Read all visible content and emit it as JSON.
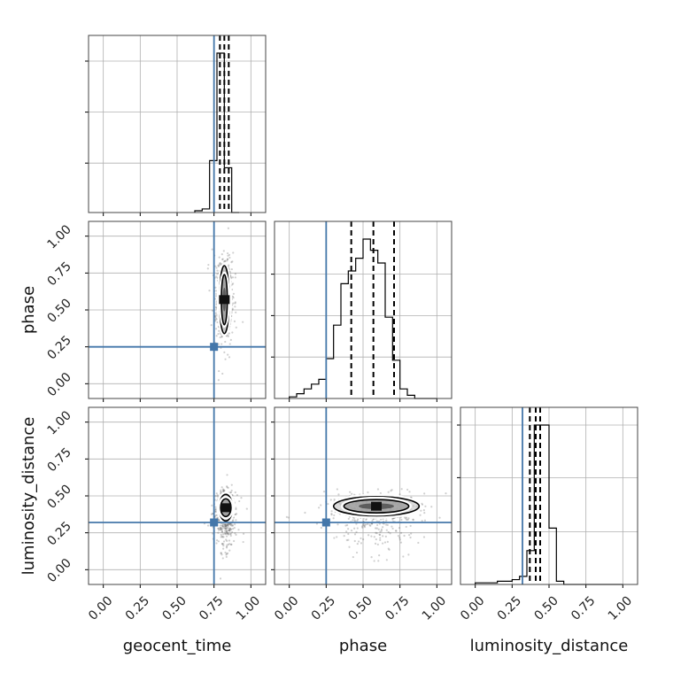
{
  "chart_data": {
    "type": "corner",
    "parameters": [
      "geocent_time",
      "phase",
      "luminosity_distance"
    ],
    "axis_range": [
      -0.1,
      1.1
    ],
    "ticks": [
      "0.00",
      "0.25",
      "0.50",
      "0.75",
      "1.00"
    ],
    "tick_values": [
      0,
      0.25,
      0.5,
      0.75,
      1.0
    ],
    "grid": true,
    "truths": {
      "geocent_time": 0.75,
      "phase": 0.25,
      "luminosity_distance": 0.32
    },
    "colors": {
      "truth": "#4477aa",
      "hist": "#000000",
      "grid": "#b0b0b0",
      "points": "#555555"
    },
    "marginals": [
      {
        "parameter": "geocent_time",
        "bin_edges": [
          0.62,
          0.67,
          0.72,
          0.77,
          0.82,
          0.87,
          0.92
        ],
        "counts": [
          0.01,
          0.02,
          0.29,
          0.89,
          0.25,
          0.0
        ],
        "quantiles": [
          0.79,
          0.82,
          0.85
        ]
      },
      {
        "parameter": "phase",
        "bin_edges": [
          0.0,
          0.05,
          0.1,
          0.15,
          0.2,
          0.25,
          0.3,
          0.35,
          0.4,
          0.45,
          0.5,
          0.55,
          0.6,
          0.65,
          0.7,
          0.75,
          0.8,
          0.85,
          0.9,
          0.95,
          1.0
        ],
        "counts": [
          0.01,
          0.03,
          0.06,
          0.09,
          0.12,
          0.25,
          0.46,
          0.72,
          0.8,
          0.88,
          1.0,
          0.93,
          0.85,
          0.51,
          0.24,
          0.06,
          0.02,
          0.0,
          0.0,
          0.0
        ],
        "quantiles": [
          0.42,
          0.57,
          0.71
        ]
      },
      {
        "parameter": "luminosity_distance",
        "bin_edges": [
          0.0,
          0.05,
          0.1,
          0.15,
          0.2,
          0.25,
          0.3,
          0.35,
          0.4,
          0.45,
          0.5,
          0.55,
          0.6,
          0.65,
          0.7,
          0.75,
          0.8,
          0.85,
          0.9,
          0.95,
          1.0
        ],
        "counts": [
          0.01,
          0.01,
          0.01,
          0.02,
          0.02,
          0.03,
          0.05,
          0.21,
          0.99,
          0.99,
          0.35,
          0.02,
          0.0,
          0.0,
          0.0,
          0.0,
          0.0,
          0.0,
          0.0,
          0.0
        ],
        "quantiles": [
          0.37,
          0.41,
          0.44
        ]
      }
    ],
    "joint": [
      {
        "x": "geocent_time",
        "y": "phase",
        "center": [
          0.82,
          0.57
        ],
        "spread": [
          0.025,
          0.13
        ],
        "contour_radii": [
          [
            0.033,
            0.23
          ],
          [
            0.02,
            0.17
          ],
          [
            0.012,
            0.08
          ]
        ]
      },
      {
        "x": "geocent_time",
        "y": "luminosity_distance",
        "center": [
          0.83,
          0.42
        ],
        "spread": [
          0.03,
          0.06
        ],
        "contour_radii": [
          [
            0.045,
            0.09
          ],
          [
            0.035,
            0.06
          ],
          [
            0.015,
            0.03
          ]
        ]
      },
      {
        "x": "phase",
        "y": "luminosity_distance",
        "center": [
          0.59,
          0.43
        ],
        "spread": [
          0.13,
          0.04
        ],
        "contour_radii": [
          [
            0.29,
            0.065
          ],
          [
            0.22,
            0.045
          ],
          [
            0.12,
            0.02
          ]
        ]
      }
    ]
  }
}
